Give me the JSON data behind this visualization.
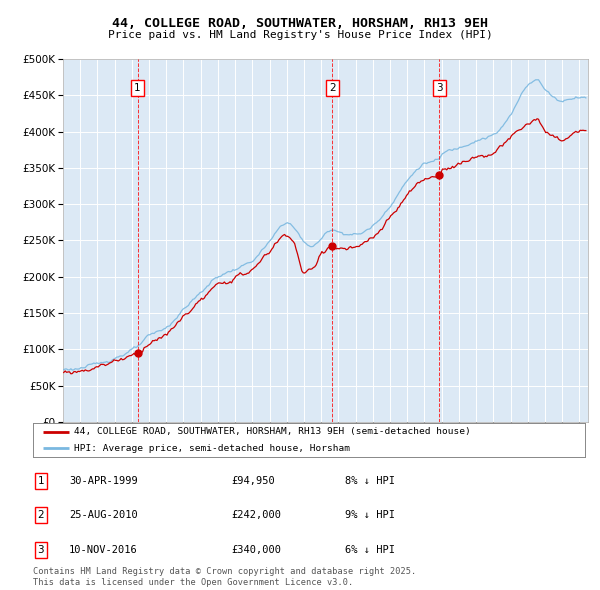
{
  "title": "44, COLLEGE ROAD, SOUTHWATER, HORSHAM, RH13 9EH",
  "subtitle": "Price paid vs. HM Land Registry's House Price Index (HPI)",
  "legend_property": "44, COLLEGE ROAD, SOUTHWATER, HORSHAM, RH13 9EH (semi-detached house)",
  "legend_hpi": "HPI: Average price, semi-detached house, Horsham",
  "transactions": [
    {
      "num": 1,
      "date": "30-APR-1999",
      "date_x": 1999.33,
      "price": 94950,
      "pct": "8% ↓ HPI"
    },
    {
      "num": 2,
      "date": "25-AUG-2010",
      "date_x": 2010.65,
      "price": 242000,
      "pct": "9% ↓ HPI"
    },
    {
      "num": 3,
      "date": "10-NOV-2016",
      "date_x": 2016.86,
      "price": 340000,
      "pct": "6% ↓ HPI"
    }
  ],
  "ylim": [
    0,
    500000
  ],
  "xlim_start": 1995.0,
  "xlim_end": 2025.5,
  "background_color": "#dce9f5",
  "hpi_color": "#7ab8e0",
  "property_color": "#cc0000",
  "grid_color": "#ffffff",
  "footer": "Contains HM Land Registry data © Crown copyright and database right 2025.\nThis data is licensed under the Open Government Licence v3.0."
}
